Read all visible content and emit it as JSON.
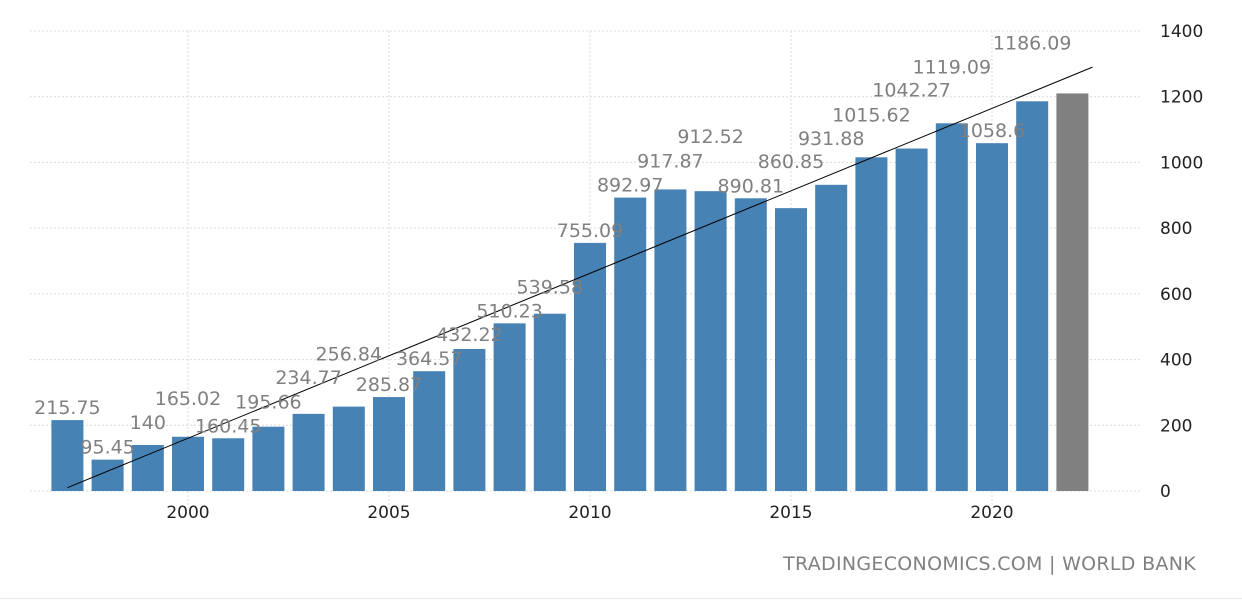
{
  "chart_data": {
    "type": "bar",
    "title": "",
    "xlabel": "",
    "ylabel": "",
    "categories": [
      "1997",
      "1998",
      "1999",
      "2000",
      "2001",
      "2002",
      "2003",
      "2004",
      "2005",
      "2006",
      "2007",
      "2008",
      "2009",
      "2010",
      "2011",
      "2012",
      "2013",
      "2014",
      "2015",
      "2016",
      "2017",
      "2018",
      "2019",
      "2020",
      "2021",
      "2022"
    ],
    "values": [
      215.75,
      95.45,
      140,
      165.02,
      160.45,
      195.66,
      234.77,
      256.84,
      285.87,
      364.57,
      432.22,
      510.23,
      539.58,
      755.09,
      892.97,
      917.87,
      912.52,
      890.81,
      860.85,
      931.88,
      1015.62,
      1042.27,
      1119.09,
      1058.6,
      1186.09,
      1210
    ],
    "labels": [
      "215.75",
      "95.45",
      "140",
      "165.02",
      "160.45",
      "195.66",
      "234.77",
      "256.84",
      "285.87",
      "364.57",
      "432.22",
      "510.23",
      "539.58",
      "755.09",
      "892.97",
      "917.87",
      "912.52",
      "890.81",
      "860.85",
      "931.88",
      "1015.62",
      "1042.27",
      "1119.09",
      "1058.6",
      "1186.09",
      ""
    ],
    "forecast_index": 25,
    "ylim": [
      0,
      1400
    ],
    "yticks": [
      "0",
      "200",
      "400",
      "600",
      "800",
      "1000",
      "1200",
      "1400"
    ],
    "xticks": [
      "2000",
      "2005",
      "2010",
      "2015",
      "2020"
    ],
    "trendline": {
      "start": [
        1997,
        10
      ],
      "end": [
        2022.5,
        1290
      ]
    },
    "grid": true,
    "legend": "none",
    "colors": {
      "bar": "#4682b4",
      "forecast": "#808080",
      "label": "#808080",
      "trend": "#000000"
    }
  },
  "footer": "TRADINGECONOMICS.COM | WORLD BANK"
}
